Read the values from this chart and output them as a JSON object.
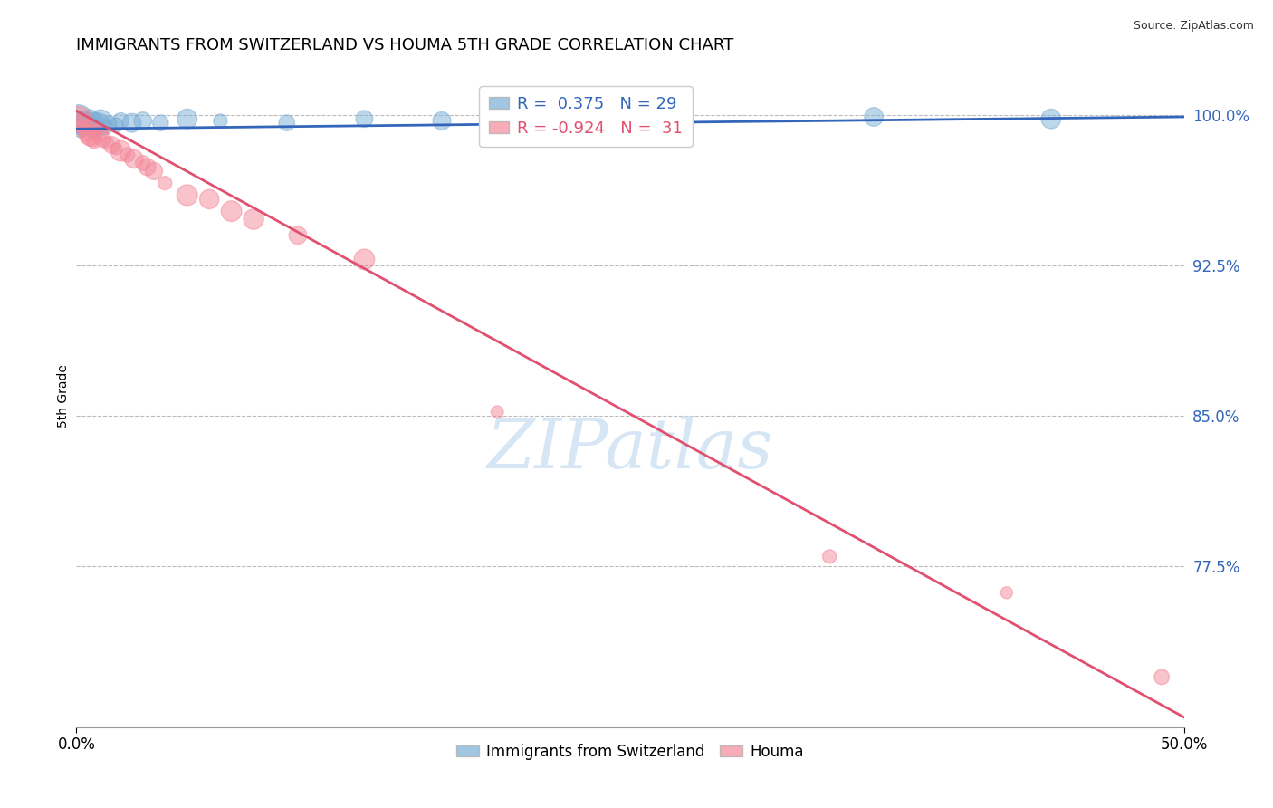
{
  "title": "IMMIGRANTS FROM SWITZERLAND VS HOUMA 5TH GRADE CORRELATION CHART",
  "source": "Source: ZipAtlas.com",
  "ylabel": "5th Grade",
  "ytick_labels": [
    "100.0%",
    "92.5%",
    "85.0%",
    "77.5%"
  ],
  "ytick_values": [
    1.0,
    0.925,
    0.85,
    0.775
  ],
  "xlim": [
    0.0,
    0.5
  ],
  "ylim": [
    0.695,
    1.025
  ],
  "blue_R": 0.375,
  "blue_N": 29,
  "pink_R": -0.924,
  "pink_N": 31,
  "blue_color": "#7AAED6",
  "pink_color": "#F4899A",
  "blue_line_color": "#3366BB",
  "pink_line_color": "#E05070",
  "watermark": "ZIPatlas",
  "watermark_color": "#C5DCF0",
  "legend_label_blue": "Immigrants from Switzerland",
  "legend_label_pink": "Houma",
  "blue_x": [
    0.001,
    0.002,
    0.002,
    0.003,
    0.003,
    0.004,
    0.005,
    0.006,
    0.007,
    0.008,
    0.009,
    0.01,
    0.011,
    0.013,
    0.015,
    0.018,
    0.02,
    0.025,
    0.03,
    0.038,
    0.05,
    0.065,
    0.095,
    0.13,
    0.165,
    0.2,
    0.27,
    0.36,
    0.44
  ],
  "blue_y": [
    0.998,
    0.996,
    0.994,
    0.997,
    0.993,
    0.998,
    0.996,
    0.997,
    0.994,
    0.996,
    0.993,
    0.995,
    0.997,
    0.994,
    0.996,
    0.995,
    0.997,
    0.996,
    0.997,
    0.996,
    0.998,
    0.997,
    0.996,
    0.998,
    0.997,
    0.997,
    0.998,
    0.999,
    0.998
  ],
  "blue_tline_x": [
    0.0,
    0.5
  ],
  "blue_tline_y": [
    0.993,
    0.999
  ],
  "pink_x": [
    0.001,
    0.002,
    0.003,
    0.004,
    0.005,
    0.006,
    0.007,
    0.008,
    0.009,
    0.01,
    0.012,
    0.014,
    0.016,
    0.018,
    0.02,
    0.023,
    0.026,
    0.03,
    0.032,
    0.035,
    0.04,
    0.05,
    0.06,
    0.07,
    0.08,
    0.1,
    0.13,
    0.19,
    0.34,
    0.42,
    0.49
  ],
  "pink_y": [
    0.998,
    0.996,
    0.994,
    0.993,
    0.992,
    0.99,
    0.989,
    0.987,
    0.992,
    0.991,
    0.988,
    0.986,
    0.985,
    0.983,
    0.982,
    0.98,
    0.978,
    0.976,
    0.974,
    0.972,
    0.966,
    0.96,
    0.958,
    0.952,
    0.948,
    0.94,
    0.928,
    0.852,
    0.78,
    0.762,
    0.72
  ],
  "pink_tline_x": [
    0.0,
    0.5
  ],
  "pink_tline_y": [
    1.002,
    0.7
  ]
}
